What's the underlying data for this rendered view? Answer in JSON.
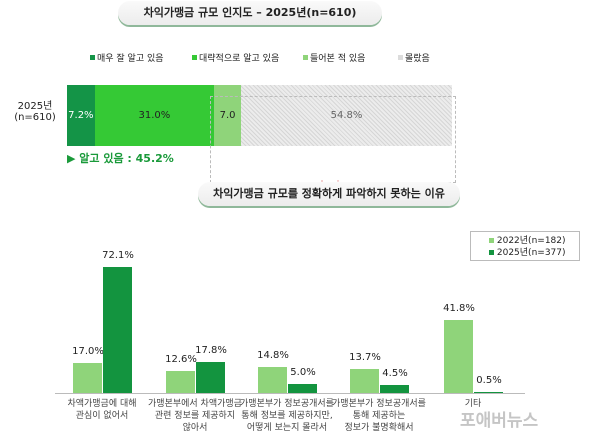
{
  "titles": {
    "top": "차익가맹금 규모 인지도 – 2025년(n=610)",
    "bottom": "차익가맹금 규모를 정확하게 파악하지 못하는 이유"
  },
  "watermark": "포애버뉴스",
  "chart_data": [
    {
      "type": "bar",
      "stacked": true,
      "orientation": "horizontal",
      "title": "차익가맹금 규모 인지도 – 2025년(n=610)",
      "categories": [
        "2025년\n(n=610)"
      ],
      "series": [
        {
          "name": "매우 잘 알고 있음",
          "values": [
            7.2
          ],
          "label": "7.2%",
          "color": "#149447"
        },
        {
          "name": "대략적으로 알고 있음",
          "values": [
            31.0
          ],
          "label": "31.0%",
          "color": "#35c935"
        },
        {
          "name": "들어본 적 있음",
          "values": [
            7.0
          ],
          "label": "7.0",
          "color": "#8fd47a"
        },
        {
          "name": "몰랐음",
          "values": [
            54.8
          ],
          "label": "54.8%",
          "color": "#dcdcdc"
        }
      ],
      "annotation": "▶ 알고 있음 : 45.2%",
      "legend": "top"
    },
    {
      "type": "bar",
      "title": "차익가맹금 규모를 정확하게 파악하지 못하는 이유",
      "categories": [
        "차액가맹금에 대해\n관심이 없어서",
        "가맹본부에서 차액가맹금\n관련 정보를 제공하지\n않아서",
        "가맹본부가 정보공개서를\n통해 정보를 제공하지만,\n어떻게 보는지 몰라서",
        "가맹본부가 정보공개서를\n통해 제공하는\n정보가 불명확해서",
        "기타"
      ],
      "series": [
        {
          "name": "2022년(n=182)",
          "values": [
            17.0,
            12.6,
            14.8,
            13.7,
            41.8
          ],
          "color": "#8fd47a"
        },
        {
          "name": "2025년(n=377)",
          "values": [
            72.1,
            17.8,
            5.0,
            4.5,
            0.5
          ],
          "color": "#13943f"
        }
      ],
      "legend": "top-right",
      "ylim": [
        0,
        80
      ]
    }
  ]
}
